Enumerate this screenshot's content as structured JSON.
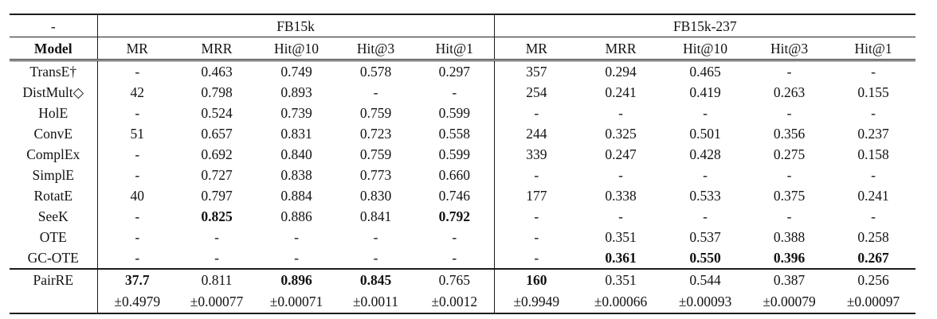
{
  "colors": {
    "background": "#ffffff",
    "text": "#121212",
    "rule": "#1c1c1c"
  },
  "table": {
    "corner_label": "-",
    "dataset_headers": [
      "FB15k",
      "FB15k-237"
    ],
    "model_header": "Model",
    "metric_headers": [
      "MR",
      "MRR",
      "Hit@10",
      "Hit@3",
      "Hit@1",
      "MR",
      "MRR",
      "Hit@10",
      "Hit@3",
      "Hit@1"
    ],
    "rows": [
      {
        "model": "TransE†",
        "values": [
          "-",
          "0.463",
          "0.749",
          "0.578",
          "0.297",
          "357",
          "0.294",
          "0.465",
          "-",
          "-"
        ],
        "bold": []
      },
      {
        "model": "DistMult◇",
        "values": [
          "42",
          "0.798",
          "0.893",
          "-",
          "-",
          "254",
          "0.241",
          "0.419",
          "0.263",
          "0.155"
        ],
        "bold": []
      },
      {
        "model": "HolE",
        "values": [
          "-",
          "0.524",
          "0.739",
          "0.759",
          "0.599",
          "-",
          "-",
          "-",
          "-",
          "-"
        ],
        "bold": []
      },
      {
        "model": "ConvE",
        "values": [
          "51",
          "0.657",
          "0.831",
          "0.723",
          "0.558",
          "244",
          "0.325",
          "0.501",
          "0.356",
          "0.237"
        ],
        "bold": []
      },
      {
        "model": "ComplEx",
        "values": [
          "-",
          "0.692",
          "0.840",
          "0.759",
          "0.599",
          "339",
          "0.247",
          "0.428",
          "0.275",
          "0.158"
        ],
        "bold": []
      },
      {
        "model": "SimplE",
        "values": [
          "-",
          "0.727",
          "0.838",
          "0.773",
          "0.660",
          "-",
          "-",
          "-",
          "-",
          "-"
        ],
        "bold": []
      },
      {
        "model": "RotatE",
        "values": [
          "40",
          "0.797",
          "0.884",
          "0.830",
          "0.746",
          "177",
          "0.338",
          "0.533",
          "0.375",
          "0.241"
        ],
        "bold": []
      },
      {
        "model": "SeeK",
        "values": [
          "-",
          "0.825",
          "0.886",
          "0.841",
          "0.792",
          "-",
          "-",
          "-",
          "-",
          "-"
        ],
        "bold": [
          1,
          4
        ]
      },
      {
        "model": "OTE",
        "values": [
          "-",
          "-",
          "-",
          "-",
          "-",
          "-",
          "0.351",
          "0.537",
          "0.388",
          "0.258"
        ],
        "bold": []
      },
      {
        "model": "GC-OTE",
        "values": [
          "-",
          "-",
          "-",
          "-",
          "-",
          "-",
          "0.361",
          "0.550",
          "0.396",
          "0.267"
        ],
        "bold": [
          6,
          7,
          8,
          9
        ]
      }
    ],
    "final": {
      "model": "PairRE",
      "values": [
        "37.7",
        "0.811",
        "0.896",
        "0.845",
        "0.765",
        "160",
        "0.351",
        "0.544",
        "0.387",
        "0.256"
      ],
      "bold": [
        0,
        2,
        3,
        5
      ],
      "std": [
        "±0.4979",
        "±0.00077",
        "±0.00071",
        "±0.0011",
        "±0.0012",
        "±0.9949",
        "±0.00066",
        "±0.00093",
        "±0.00079",
        "±0.00097"
      ]
    }
  }
}
